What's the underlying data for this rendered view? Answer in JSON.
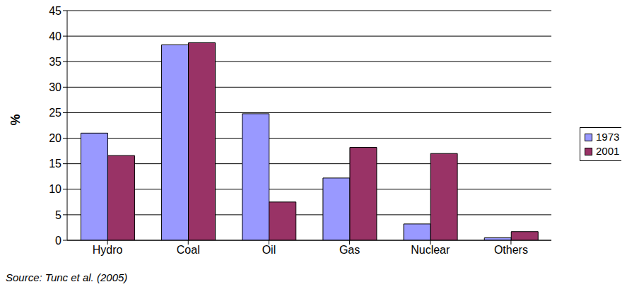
{
  "chart_data": {
    "type": "bar",
    "ylabel": "%",
    "categories": [
      "Hydro",
      "Coal",
      "Oil",
      "Gas",
      "Nuclear",
      "Others"
    ],
    "series": [
      {
        "name": "1973",
        "color": "#9999FF",
        "values": [
          21,
          38.3,
          24.8,
          12.2,
          3.2,
          0.5
        ]
      },
      {
        "name": "2001",
        "color": "#993366",
        "values": [
          16.6,
          38.7,
          7.5,
          18.2,
          17,
          1.7
        ]
      }
    ],
    "ylim": [
      0,
      45
    ],
    "yticks": [
      0,
      5,
      10,
      15,
      20,
      25,
      30,
      35,
      40,
      45
    ],
    "grid": true,
    "legend": "right",
    "annotations": [
      "Source: Tunc et al. (2005)"
    ]
  }
}
